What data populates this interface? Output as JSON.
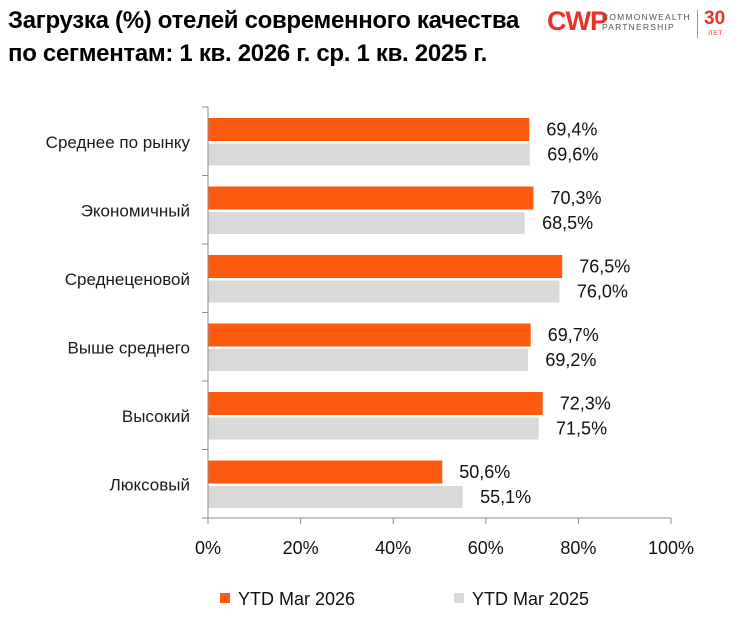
{
  "title": "Загрузка (%) отелей современного качества по сегментам: 1 кв. 2026 г. ср. 1 кв. 2025 г.",
  "logo": {
    "mark": "CWP",
    "line1": "COMMONWEALTH",
    "line2": "PARTNERSHIP",
    "anniversary": "30",
    "anniversary_unit": "ЛЕТ",
    "mark_color": "#e8322c"
  },
  "chart_data": {
    "type": "bar",
    "orientation": "horizontal",
    "categories": [
      "Среднее по рынку",
      "Экономичный",
      "Среднеценовой",
      "Выше среднего",
      "Высокий",
      "Люксовый"
    ],
    "series": [
      {
        "name": "YTD Mar 2026",
        "values": [
          69.4,
          70.3,
          76.5,
          69.7,
          72.3,
          50.6
        ],
        "labels": [
          "69,4%",
          "70,3%",
          "76,5%",
          "69,7%",
          "72,3%",
          "50,6%"
        ],
        "color": "#fb5a0f"
      },
      {
        "name": "YTD Mar 2025",
        "values": [
          69.6,
          68.5,
          76.0,
          69.2,
          71.5,
          55.1
        ],
        "labels": [
          "69,6%",
          "68,5%",
          "76,0%",
          "69,2%",
          "71,5%",
          "55,1%"
        ],
        "color": "#d9d9d9"
      }
    ],
    "xlim": [
      0,
      100
    ],
    "x_ticks": [
      0,
      20,
      40,
      60,
      80,
      100
    ],
    "x_tick_labels": [
      "0%",
      "20%",
      "40%",
      "60%",
      "80%",
      "100%"
    ],
    "grid": false,
    "legend_position": "bottom"
  }
}
